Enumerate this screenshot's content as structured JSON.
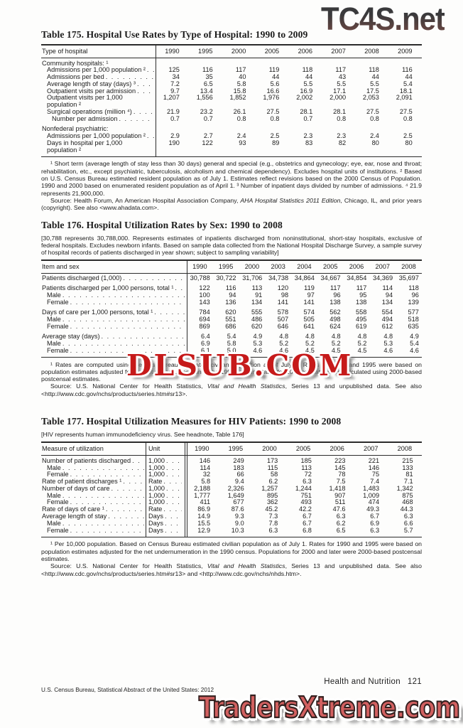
{
  "watermarks": {
    "top": "TC4S.net",
    "middle": "DLSUB.COM",
    "bottom": "TradersXtreme.com",
    "top_color": "#4a3c3a",
    "middle_color": "#c61a1a",
    "bottom_color": "#d26060"
  },
  "footer": {
    "section_label": "Health and Nutrition",
    "page_number": "121",
    "imprint": "U.S. Census Bureau, Statistical Abstract of the United States: 2012"
  },
  "tables": [
    {
      "id": "t175",
      "title": "Table 175. Hospital Use Rates by Type of Hospital: 1990 to 2009",
      "headnote": "",
      "unit_col": false,
      "columns": [
        "Type of hospital",
        "1990",
        "1995",
        "2000",
        "2005",
        "2006",
        "2007",
        "2008",
        "2009"
      ],
      "rows": [
        {
          "label": "Community hospitals: ¹",
          "group": true,
          "values": [
            "",
            "",
            "",
            "",
            "",
            "",
            "",
            ""
          ]
        },
        {
          "label": "Admissions per 1,000 population ²",
          "indent": 1,
          "values": [
            "125",
            "116",
            "117",
            "119",
            "118",
            "117",
            "118",
            "116"
          ]
        },
        {
          "label": "Admissions per bed",
          "indent": 1,
          "values": [
            "34",
            "35",
            "40",
            "44",
            "44",
            "43",
            "44",
            "44"
          ]
        },
        {
          "label": "Average length of stay (days) ³",
          "indent": 1,
          "values": [
            "7.2",
            "6.5",
            "5.8",
            "5.6",
            "5.5",
            "5.5",
            "5.5",
            "5.4"
          ]
        },
        {
          "label": "Outpatient visits per admission",
          "indent": 1,
          "values": [
            "9.7",
            "13.4",
            "15.8",
            "16.6",
            "16.9",
            "17.1",
            "17.5",
            "18.1"
          ]
        },
        {
          "label": "Outpatient visits per 1,000 population ²",
          "indent": 1,
          "values": [
            "1,207",
            "1,556",
            "1,852",
            "1,976",
            "2,002",
            "2,000",
            "2,053",
            "2,091"
          ]
        },
        {
          "label": "Surgical operations (million ⁴)",
          "indent": 1,
          "values": [
            "21.9",
            "23.2",
            "26.1",
            "27.5",
            "28.1",
            "28.1",
            "27.5",
            "27.5"
          ]
        },
        {
          "label": "Number per admission",
          "indent": 2,
          "values": [
            "0.7",
            "0.7",
            "0.8",
            "0.8",
            "0.7",
            "0.8",
            "0.8",
            "0.8"
          ]
        },
        {
          "label": "Nonfederal psychiatric:",
          "group": true,
          "space": true,
          "values": [
            "",
            "",
            "",
            "",
            "",
            "",
            "",
            ""
          ]
        },
        {
          "label": "Admissions per 1,000 population ²",
          "indent": 1,
          "values": [
            "2.9",
            "2.7",
            "2.4",
            "2.5",
            "2.3",
            "2.3",
            "2.4",
            "2.5"
          ]
        },
        {
          "label": "Days in hospital per 1,000 population ²",
          "indent": 1,
          "values": [
            "190",
            "122",
            "93",
            "89",
            "83",
            "82",
            "80",
            "80"
          ]
        }
      ],
      "footnote": "¹ Short term (average length of stay less than 30 days) general and special (e.g., obstetrics and gynecology; eye, ear, nose and throat; rehabilitation, etc., except psychiatric, tuberculosis, alcoholism and chemical dependency). Excludes hospital units of institutions. ² Based on U.S. Census Bureau estimated resident population as of July 1. Estimates reflect revisions based on the 2000 Census of Population. 1990 and 2000 based on enumerated resident population as of April 1. ³ Number of inpatient days divided by number of admissions. ⁴ 21.9 represents 21,900,000.",
      "source": {
        "pre": "Source: Health Forum, An American Hospital Association Company, ",
        "italic": "AHA Hospital Statistics 2011 Edition",
        "post": ", Chicago, IL, and prior years (copyright). See also <www.ahadata.com>."
      }
    },
    {
      "id": "t176",
      "title": "Table 176. Hospital Utilization Rates by Sex: 1990 to 2008",
      "headnote": "[30,788 represents 30,788,000. Represents estimates of inpatients discharged from noninstitutional, short-stay hospitals, exclusive of federal hospitals. Excludes newborn infants. Based on sample data collected from the National Hospital Discharge Survey, a sample survey of hospital records of patients discharged in year shown; subject to sampling variability]",
      "unit_col": false,
      "columns": [
        "Item and sex",
        "1990",
        "1995",
        "2000",
        "2003",
        "2004",
        "2005",
        "2006",
        "2007",
        "2008"
      ],
      "rows": [
        {
          "label": "Patients discharged (1,000)",
          "values": [
            "30,788",
            "30,722",
            "31,706",
            "34,738",
            "34,864",
            "34,667",
            "34,854",
            "34,369",
            "35,697"
          ]
        },
        {
          "label": "Patients discharged per 1,000 persons, total ¹",
          "space": true,
          "values": [
            "122",
            "116",
            "113",
            "120",
            "119",
            "117",
            "117",
            "114",
            "118"
          ]
        },
        {
          "label": "Male",
          "indent": 1,
          "values": [
            "100",
            "94",
            "91",
            "98",
            "97",
            "96",
            "95",
            "94",
            "96"
          ]
        },
        {
          "label": "Female",
          "indent": 1,
          "values": [
            "143",
            "136",
            "134",
            "141",
            "141",
            "138",
            "138",
            "134",
            "139"
          ]
        },
        {
          "label": "Days of care per 1,000 persons, total ¹",
          "space": true,
          "values": [
            "784",
            "620",
            "555",
            "578",
            "574",
            "562",
            "558",
            "554",
            "577"
          ]
        },
        {
          "label": "Male",
          "indent": 1,
          "values": [
            "694",
            "551",
            "486",
            "507",
            "505",
            "498",
            "495",
            "494",
            "518"
          ]
        },
        {
          "label": "Female",
          "indent": 1,
          "values": [
            "869",
            "686",
            "620",
            "646",
            "641",
            "624",
            "619",
            "612",
            "635"
          ]
        },
        {
          "label": "Average stay (days)",
          "space": true,
          "values": [
            "6.4",
            "5.4",
            "4.9",
            "4.8",
            "4.8",
            "4.8",
            "4.8",
            "4.8",
            "4.9"
          ]
        },
        {
          "label": "Male",
          "indent": 1,
          "values": [
            "6.9",
            "5.8",
            "5.3",
            "5.2",
            "5.2",
            "5.2",
            "5.2",
            "5.3",
            "5.4"
          ]
        },
        {
          "label": "Female",
          "indent": 1,
          "values": [
            "6.1",
            "5.0",
            "4.6",
            "4.6",
            "4.5",
            "4.5",
            "4.5",
            "4.6",
            "4.6"
          ]
        }
      ],
      "footnote": "¹ Rates are computed using Census Bureau estimated civilian population as of July 1. Rates for 1990 and 1995 were based on population estimates adjusted for the net undernumeration in the 1990 census. Rates for 2000 and later were calculated using 2000-based postcensal estimates.",
      "source": {
        "pre": "Source: U.S. National Center for Health Statistics, ",
        "italic": "Vital and Health Statistics",
        "post": ", Series 13 and unpublished data. See also <http://www.cdc.gov/nchs/products/series.htm#sr13>."
      }
    },
    {
      "id": "t177",
      "title": "Table 177. Hospital Utilization Measures for HIV Patients: 1990 to 2008",
      "headnote": "[HIV represents human immunodeficiency virus. See headnote, Table 176]",
      "unit_col": true,
      "columns": [
        "Measure of utilization",
        "Unit",
        "1990",
        "1995",
        "2000",
        "2005",
        "2006",
        "2007",
        "2008"
      ],
      "rows": [
        {
          "label": "Number of patients discharged",
          "unit": "1,000",
          "values": [
            "146",
            "249",
            "173",
            "185",
            "223",
            "221",
            "215"
          ]
        },
        {
          "label": "Male",
          "indent": 1,
          "unit": "1,000",
          "values": [
            "114",
            "183",
            "115",
            "113",
            "145",
            "146",
            "133"
          ]
        },
        {
          "label": "Female",
          "indent": 1,
          "unit": "1,000",
          "values": [
            "32",
            "66",
            "58",
            "72",
            "78",
            "75",
            "81"
          ]
        },
        {
          "label": "Rate of patient discharges ¹",
          "unit": "Rate",
          "values": [
            "5.8",
            "9.4",
            "6.2",
            "6.3",
            "7.5",
            "7.4",
            "7.1"
          ]
        },
        {
          "label": "Number of days of care",
          "unit": "1,000",
          "values": [
            "2,188",
            "2,326",
            "1,257",
            "1,244",
            "1,418",
            "1,483",
            "1,342"
          ]
        },
        {
          "label": "Male",
          "indent": 1,
          "unit": "1,000",
          "values": [
            "1,777",
            "1,649",
            "895",
            "751",
            "907",
            "1,009",
            "875"
          ]
        },
        {
          "label": "Female",
          "indent": 1,
          "unit": "1,000",
          "values": [
            "411",
            "677",
            "362",
            "493",
            "511",
            "474",
            "468"
          ]
        },
        {
          "label": "Rate of days of care ¹",
          "unit": "Rate",
          "values": [
            "86.9",
            "87.6",
            "45.2",
            "42.2",
            "47.6",
            "49.3",
            "44.3"
          ]
        },
        {
          "label": "Average length of stay",
          "unit": "Days",
          "values": [
            "14.9",
            "9.3",
            "7.3",
            "6.7",
            "6.3",
            "6.7",
            "6.3"
          ]
        },
        {
          "label": "Male",
          "indent": 1,
          "unit": "Days",
          "values": [
            "15.5",
            "9.0",
            "7.8",
            "6.7",
            "6.2",
            "6.9",
            "6.6"
          ]
        },
        {
          "label": "Female",
          "indent": 1,
          "unit": "Days",
          "values": [
            "12.9",
            "10.3",
            "6.3",
            "6.8",
            "6.5",
            "6.3",
            "5.7"
          ]
        }
      ],
      "footnote": "¹ Per 10,000 population. Based on Census Bureau estimated civilian population as of July 1. Rates for 1990 and 1995 were based on population estimates adjusted for the net undernumeration in the 1990 census. Populations for 2000 and later were 2000-based postcensal estimates.",
      "source": {
        "pre": "Source: U.S. National Center for Health Statistics, ",
        "italic": "Vital and Health Statistics",
        "post": ", Series 13 and unpublished data. See also <http://www.cdc.gov/nchs/products/series.htm#sr13> and <http://www.cdc.gov/nchs/nhds.htm>."
      }
    }
  ]
}
